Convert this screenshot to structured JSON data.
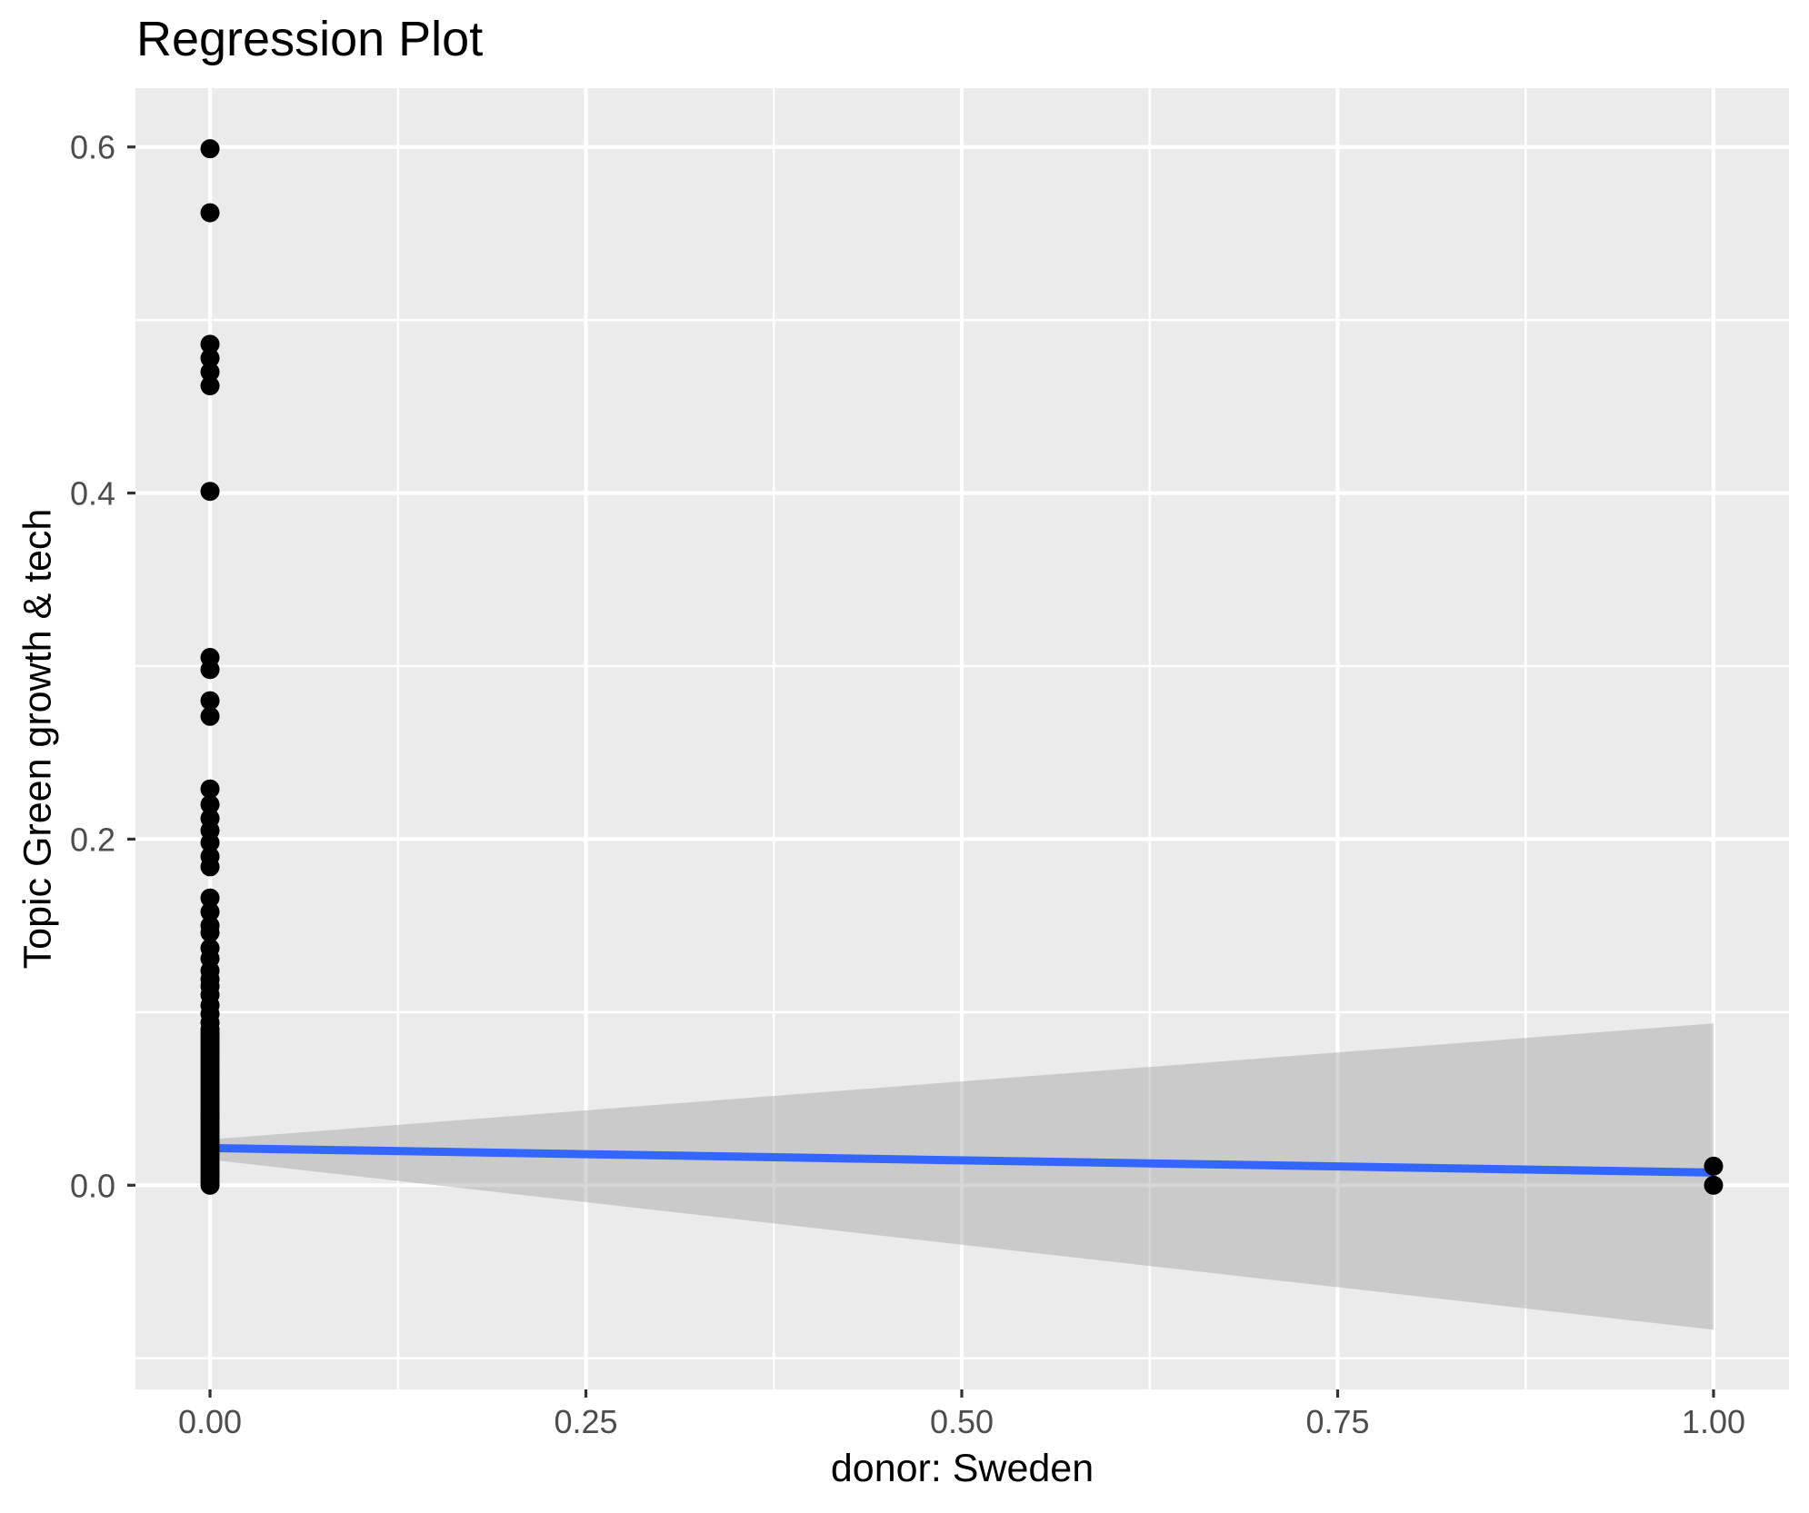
{
  "chart_data": {
    "type": "scatter",
    "title": "Regression Plot",
    "xlabel": "donor: Sweden",
    "ylabel": "Topic Green growth & tech",
    "legend": "none",
    "grid": "major-and-minor-white-on-gray-panel",
    "xlim": [
      -0.0496,
      1.0502
    ],
    "ylim": [
      -0.118,
      0.634
    ],
    "x_ticks": {
      "values": [
        0,
        0.25,
        0.5,
        0.75,
        1.0
      ],
      "labels": [
        "0.00",
        "0.25",
        "0.50",
        "0.75",
        "1.00"
      ]
    },
    "y_ticks": {
      "values": [
        0.0,
        0.2,
        0.4,
        0.6
      ],
      "labels": [
        "0.0",
        "0.2",
        "0.4",
        "0.6"
      ]
    },
    "x_minor_gridlines": [
      0.125,
      0.375,
      0.625,
      0.875
    ],
    "y_minor_gridlines": [
      -0.1,
      0.1,
      0.3,
      0.5
    ],
    "series": [
      {
        "name": "observations at donor=0",
        "x": 0,
        "y_values": [
          0.599,
          0.562,
          0.486,
          0.478,
          0.47,
          0.462,
          0.401,
          0.305,
          0.298,
          0.28,
          0.271,
          0.229,
          0.22,
          0.212,
          0.205,
          0.198,
          0.19,
          0.184,
          0.166,
          0.158,
          0.15,
          0.146,
          0.137,
          0.131,
          0.124,
          0.119,
          0.115,
          0.11,
          0.104,
          0.099,
          0.094,
          0.09,
          0.088,
          0.086,
          0.084,
          0.082,
          0.08,
          0.078,
          0.076,
          0.074,
          0.072,
          0.07,
          0.068,
          0.066,
          0.064,
          0.062,
          0.06,
          0.058,
          0.056,
          0.054,
          0.052,
          0.05,
          0.048,
          0.046,
          0.044,
          0.042,
          0.04,
          0.038,
          0.036,
          0.034,
          0.032,
          0.03,
          0.028,
          0.026,
          0.024,
          0.022,
          0.02,
          0.018,
          0.016,
          0.014,
          0.012,
          0.01,
          0.008,
          0.006,
          0.004,
          0.002,
          0.0
        ]
      },
      {
        "name": "observations at donor=1",
        "x": 1,
        "y_values": [
          0.011,
          0.0
        ]
      }
    ],
    "regression_line": {
      "x": [
        0,
        1
      ],
      "y": [
        0.0215,
        0.0073
      ]
    },
    "confidence_band": {
      "x0_upper": 0.0265,
      "x0_lower": 0.0148,
      "x1_upper": 0.0935,
      "x1_lower": -0.0835
    },
    "colors": {
      "panel_background": "#EBEBEB",
      "gridline": "#FFFFFF",
      "point": "#000000",
      "regression_line": "#3366FF",
      "confidence_band": "#999999",
      "tick_text": "#4D4D4D",
      "tick_mark": "#333333",
      "title_text": "#000000"
    }
  }
}
